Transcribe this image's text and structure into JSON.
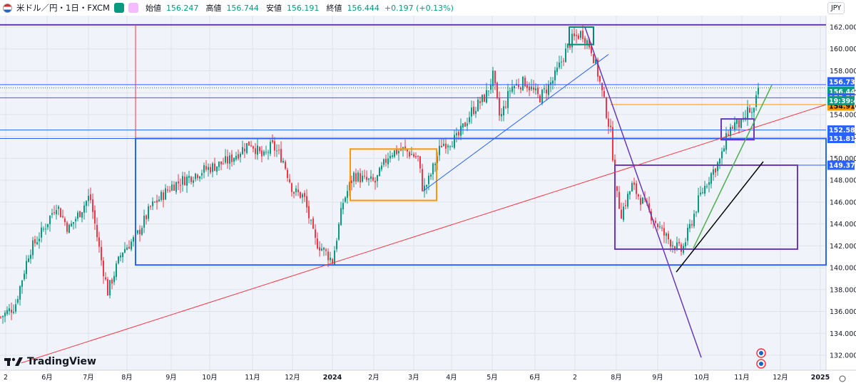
{
  "header": {
    "symbol": "米ドル／円・1日・FXCM",
    "open_label": "始値",
    "open_value": "156.247",
    "high_label": "高値",
    "high_value": "156.744",
    "low_label": "安値",
    "low_value": "156.191",
    "close_label": "終値",
    "close_value": "156.444",
    "change": "+0.197 (+0.13%)"
  },
  "currency_button": "JPY",
  "logo_text": "TradingView",
  "colors": {
    "up": "#089981",
    "down": "#f23645",
    "blue": "#2962ff",
    "purple": "#673ab7",
    "orange": "#ff9800",
    "red": "#f23645",
    "green": "#4caf50",
    "black": "#000000"
  },
  "chart_data": {
    "type": "candlestick",
    "y_ticks": [
      "162.000",
      "160.000",
      "158.000",
      "156.000",
      "154.000",
      "152.000",
      "150.000",
      "148.000",
      "146.000",
      "144.000",
      "142.000",
      "140.000",
      "138.000",
      "136.000",
      "134.000",
      "132.000"
    ],
    "x_ticks": [
      "2",
      "6月",
      "7月",
      "8月",
      "9月",
      "10月",
      "11月",
      "12月",
      "2024",
      "2月",
      "3月",
      "4月",
      "5月",
      "6月",
      "2",
      "8月",
      "9月",
      "10月",
      "11月",
      "12月",
      "2025"
    ],
    "ylim": [
      130.5,
      163.5
    ],
    "horizontal_levels": [
      {
        "price": 162.2,
        "color": "purple"
      },
      {
        "price": 156.737,
        "color": "blue",
        "label": "156.737"
      },
      {
        "price": 155.532,
        "color": "blue",
        "label": "155.532"
      },
      {
        "price": 154.916,
        "color": "orange",
        "label": "154.916"
      },
      {
        "price": 152.589,
        "color": "blue",
        "label": "152.589"
      },
      {
        "price": 151.815,
        "color": "blue",
        "label": "151.815"
      },
      {
        "price": 149.372,
        "color": "blue",
        "label": "149.372"
      },
      {
        "price": 140.25,
        "color": "blue"
      }
    ],
    "last_price": {
      "value": "156.444",
      "countdown": "19:39:43"
    },
    "anchor_points": [
      [
        0,
        135.5
      ],
      [
        20,
        136.5
      ],
      [
        40,
        141.5
      ],
      [
        60,
        143.5
      ],
      [
        78,
        145.8
      ],
      [
        95,
        143.5
      ],
      [
        110,
        145.0
      ],
      [
        125,
        146.6
      ],
      [
        140,
        141.0
      ],
      [
        150,
        137.8
      ],
      [
        170,
        141.5
      ],
      [
        190,
        142.8
      ],
      [
        210,
        145.5
      ],
      [
        240,
        147.5
      ],
      [
        280,
        148.8
      ],
      [
        320,
        149.8
      ],
      [
        350,
        151.5
      ],
      [
        368,
        150.0
      ],
      [
        380,
        151.2
      ],
      [
        395,
        150.0
      ],
      [
        410,
        147.0
      ],
      [
        425,
        146.5
      ],
      [
        440,
        142.5
      ],
      [
        458,
        141.2
      ],
      [
        465,
        140.6
      ],
      [
        480,
        146.0
      ],
      [
        495,
        148.5
      ],
      [
        510,
        148.0
      ],
      [
        525,
        147.8
      ],
      [
        545,
        150.5
      ],
      [
        565,
        150.8
      ],
      [
        585,
        150.0
      ],
      [
        592,
        147.0
      ],
      [
        600,
        148.0
      ],
      [
        618,
        151.3
      ],
      [
        640,
        151.8
      ],
      [
        660,
        154.3
      ],
      [
        680,
        155.7
      ],
      [
        690,
        157.5
      ],
      [
        700,
        153.5
      ],
      [
        715,
        156.5
      ],
      [
        735,
        157.0
      ],
      [
        755,
        155.5
      ],
      [
        775,
        157.2
      ],
      [
        790,
        159.5
      ],
      [
        800,
        160.8
      ],
      [
        815,
        161.5
      ],
      [
        828,
        160.0
      ],
      [
        838,
        157.5
      ],
      [
        848,
        154.5
      ],
      [
        856,
        152.0
      ],
      [
        862,
        147.0
      ],
      [
        870,
        145.0
      ],
      [
        885,
        147.5
      ],
      [
        900,
        146.0
      ],
      [
        915,
        144.5
      ],
      [
        930,
        143.0
      ],
      [
        945,
        142.0
      ],
      [
        955,
        141.5
      ],
      [
        965,
        143.5
      ],
      [
        980,
        146.5
      ],
      [
        995,
        148.5
      ],
      [
        1010,
        150.0
      ],
      [
        1020,
        152.5
      ],
      [
        1030,
        153.2
      ],
      [
        1040,
        153.0
      ],
      [
        1048,
        154.5
      ],
      [
        1055,
        153.8
      ],
      [
        1062,
        156.444
      ]
    ]
  }
}
